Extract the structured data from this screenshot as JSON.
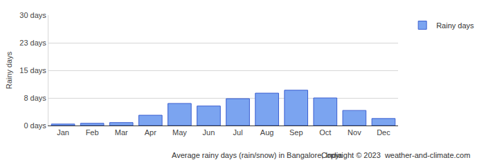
{
  "chart_data": {
    "type": "bar",
    "categories": [
      "Jan",
      "Feb",
      "Mar",
      "Apr",
      "May",
      "Jun",
      "Jul",
      "Aug",
      "Sep",
      "Oct",
      "Nov",
      "Dec"
    ],
    "series": [
      {
        "name": "Rainy days",
        "color": "#7ba4f0",
        "values": [
          0.4,
          0.6,
          0.8,
          2.8,
          6.0,
          5.3,
          7.3,
          8.8,
          9.6,
          7.5,
          4.1,
          1.9
        ]
      }
    ],
    "ylabel": "Rainy days",
    "xlabel": "Average rainy days (rain/snow) in Bangalore, India",
    "annotations": [
      "Copyright © 2023  weather-and-climate.com"
    ],
    "ylim": [
      0,
      30
    ],
    "yticks": [
      {
        "value": 0,
        "label": "0 days"
      },
      {
        "value": 7.5,
        "label": "8 days"
      },
      {
        "value": 15,
        "label": "15 days"
      },
      {
        "value": 22.5,
        "label": "23 days"
      },
      {
        "value": 30,
        "label": "30 days"
      }
    ],
    "grid": true,
    "legend": "top-right"
  }
}
